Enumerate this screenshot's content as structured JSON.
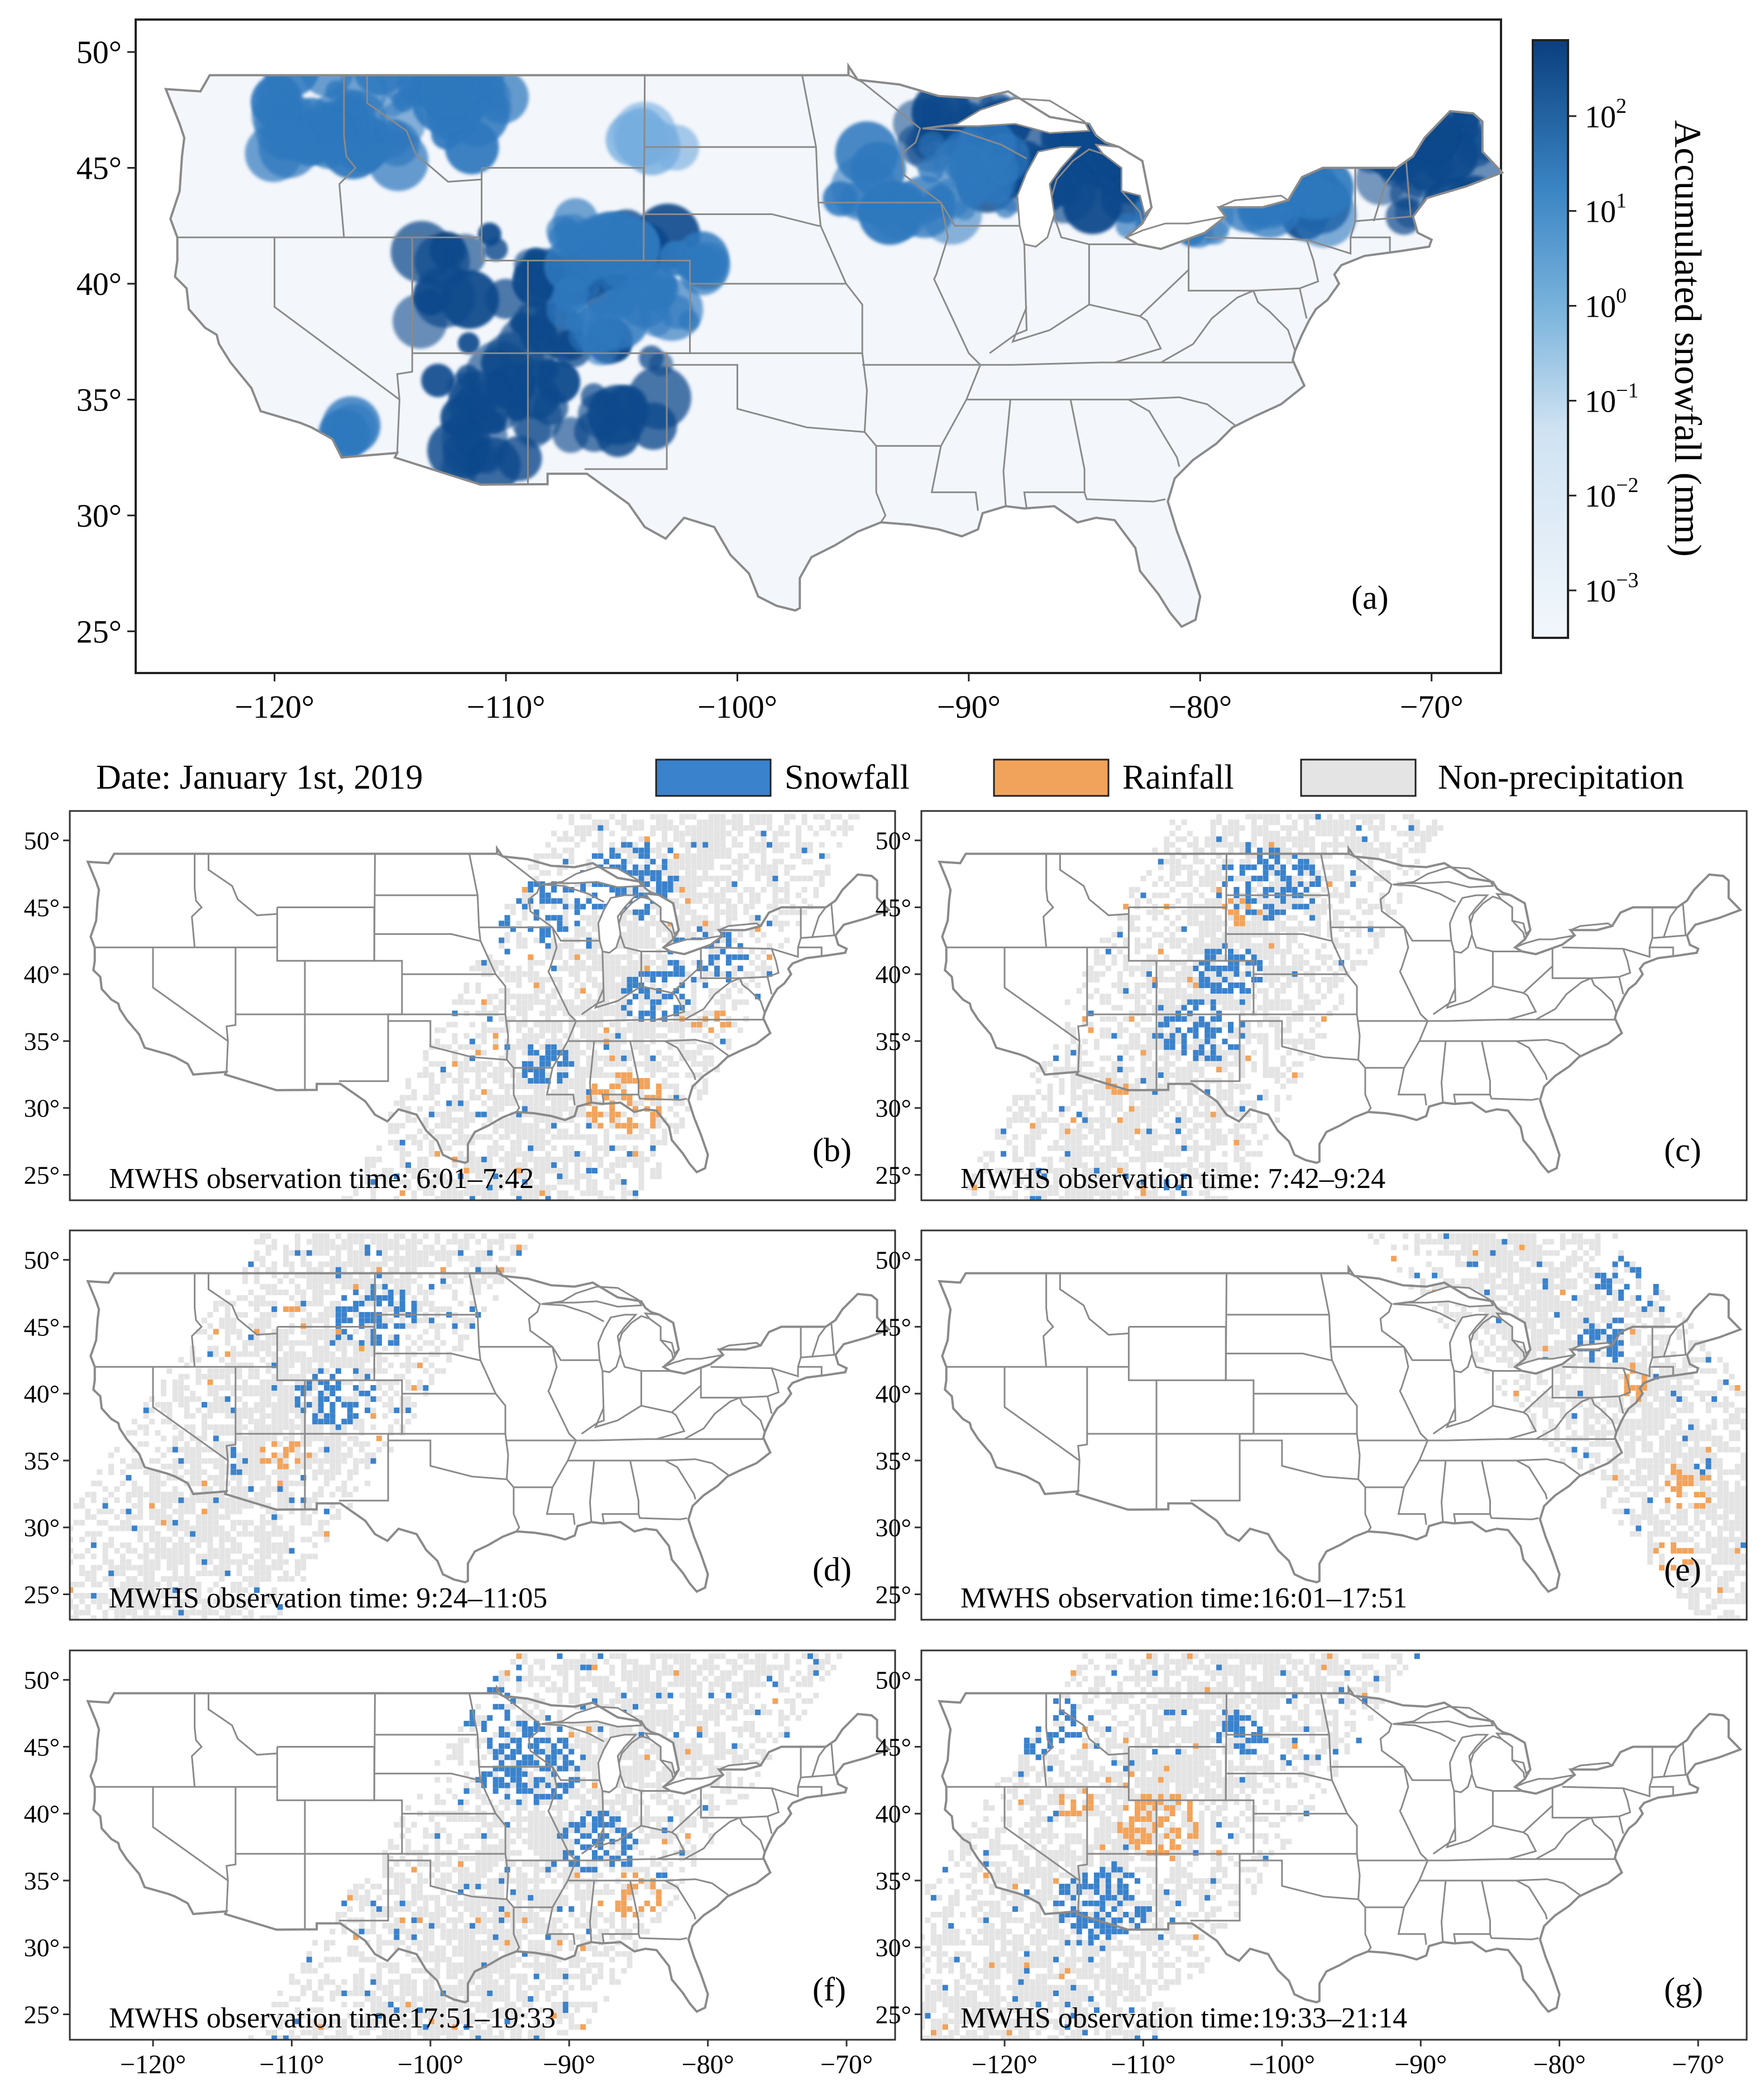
{
  "figure": {
    "date_label": "Date: January 1st, 2019",
    "legend": [
      {
        "key": "snow",
        "label": "Snowfall",
        "color": "#3a82cc"
      },
      {
        "key": "rain",
        "label": "Rainfall",
        "color": "#f2a35b"
      },
      {
        "key": "none",
        "label": "Non-precipitation",
        "color": "#e4e4e4"
      }
    ],
    "colors": {
      "land": "#f3f6fb",
      "border": "#8a8a8a",
      "frame": "#222222",
      "snow_dark": "#0f4a8c",
      "snow_mid": "#2f78be",
      "snow_light": "#77aee0"
    }
  },
  "panel_a": {
    "label": "(a)",
    "lat_ticks": [
      "50°",
      "45°",
      "40°",
      "35°",
      "30°",
      "25°"
    ],
    "lon_ticks": [
      "−120°",
      "−110°",
      "−100°",
      "−90°",
      "−80°",
      "−70°"
    ],
    "colorbar": {
      "title": "Accumulated snowfall (mm)",
      "ticks": [
        {
          "base": "10",
          "exp": "2"
        },
        {
          "base": "10",
          "exp": "1"
        },
        {
          "base": "10",
          "exp": "0"
        },
        {
          "base": "10",
          "exp": "−1"
        },
        {
          "base": "10",
          "exp": "−2"
        },
        {
          "base": "10",
          "exp": "−3"
        }
      ],
      "range_log10": [
        -3.5,
        2.8
      ]
    }
  },
  "panels": [
    {
      "id": "b",
      "label": "(b)",
      "obs": "MWHS observation time: 6:01–7:42"
    },
    {
      "id": "c",
      "label": "(c)",
      "obs": "MWHS observation time: 7:42–9:24"
    },
    {
      "id": "d",
      "label": "(d)",
      "obs": "MWHS observation time: 9:24–11:05"
    },
    {
      "id": "e",
      "label": "(e)",
      "obs": "MWHS observation time:16:01–17:51"
    },
    {
      "id": "f",
      "label": "(f)",
      "obs": "MWHS observation time:17:51–19:33"
    },
    {
      "id": "g",
      "label": "(g)",
      "obs": "MWHS observation time:19:33–21:14"
    }
  ],
  "grid_lat_ticks": [
    "50°",
    "45°",
    "40°",
    "35°",
    "30°",
    "25°"
  ],
  "grid_lon_ticks": [
    "−120°",
    "−110°",
    "−100°",
    "−90°",
    "−80°",
    "−70°"
  ]
}
